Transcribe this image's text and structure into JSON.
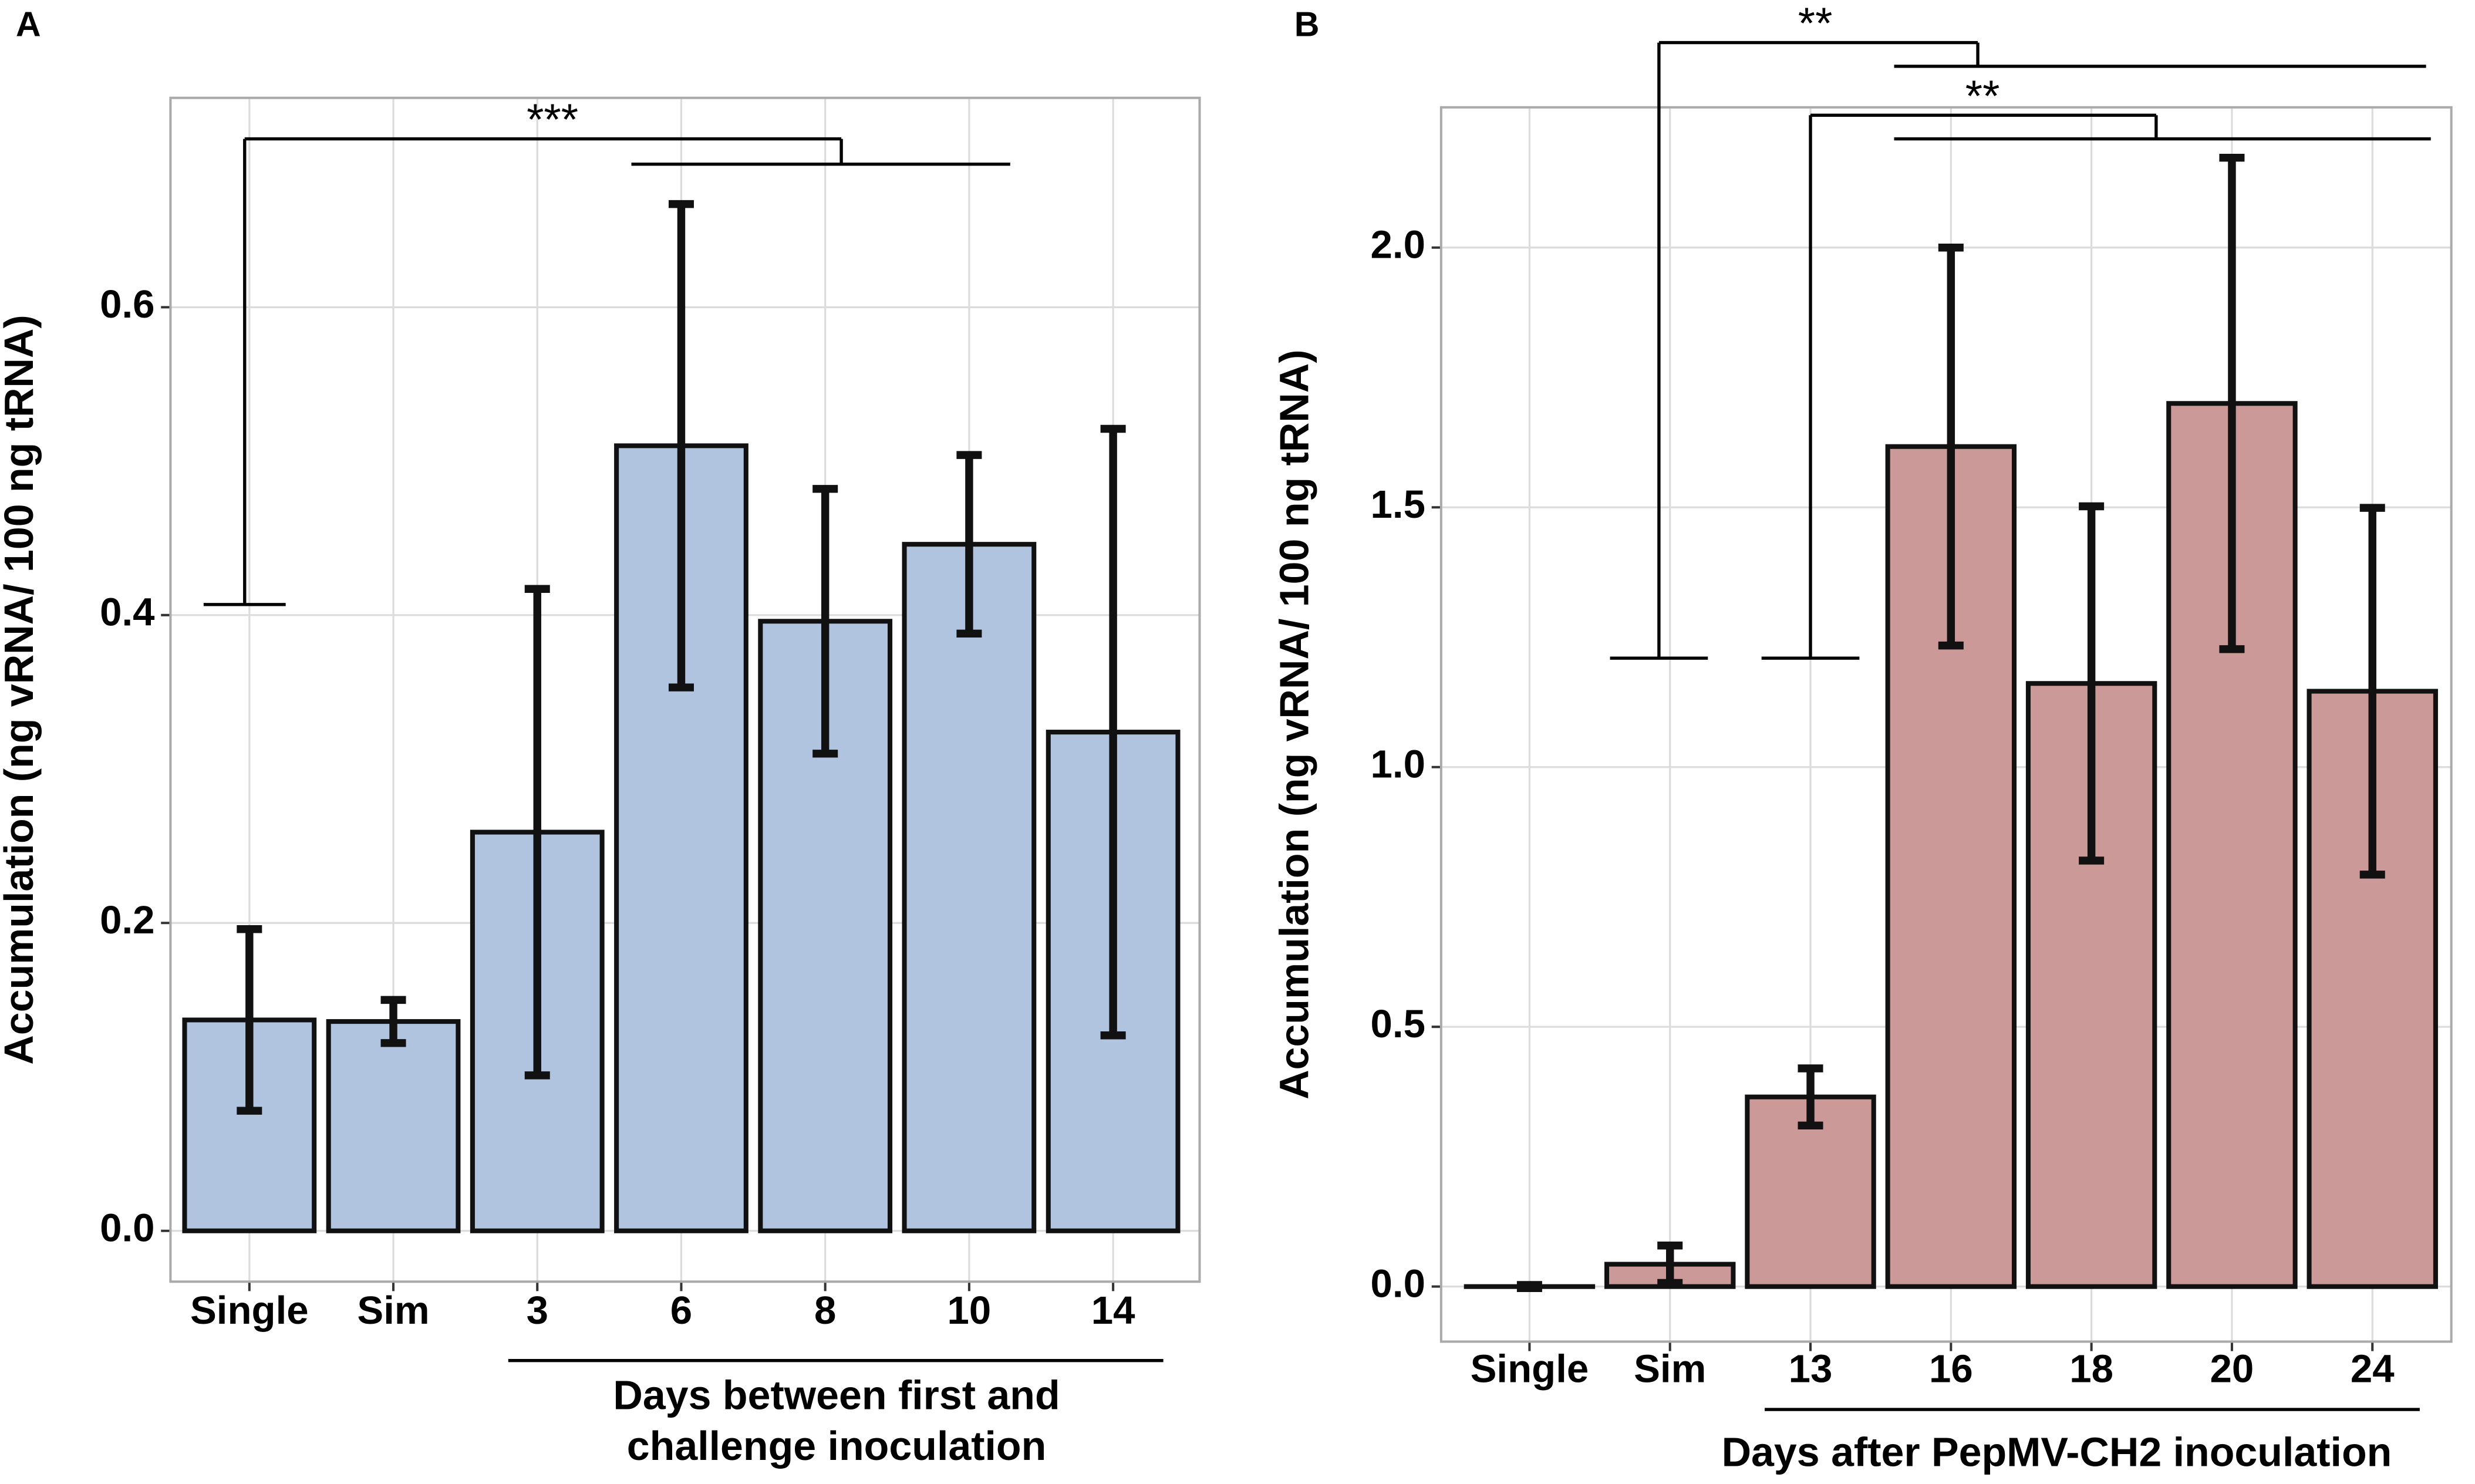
{
  "chart_data": [
    {
      "type": "bar",
      "title": "A",
      "categories": [
        "Single",
        "Sim",
        "3",
        "6",
        "8",
        "10",
        "14"
      ],
      "values": [
        0.137,
        0.136,
        0.259,
        0.51,
        0.396,
        0.446,
        0.324
      ],
      "errors": [
        0.059,
        0.014,
        0.158,
        0.157,
        0.086,
        0.058,
        0.197
      ],
      "color": "#b0c4e0",
      "ylabel": "Accumulation (ng vRNA/ 100 ng tRNA)",
      "xlabel": [
        "Days between first and",
        "challenge inoculation"
      ],
      "annotations": [
        "***"
      ],
      "ylim": [
        -0.033,
        0.736
      ],
      "yticks": [
        {
          "value": 0,
          "label": "0.0"
        },
        0.2,
        0.4,
        0.6
      ],
      "grid": true
    },
    {
      "type": "bar",
      "title": "B",
      "categories": [
        "Single",
        "Sim",
        "13",
        "16",
        "18",
        "20",
        "24"
      ],
      "values": [
        0.0,
        0.043,
        0.365,
        1.617,
        1.161,
        1.7,
        1.146
      ],
      "errors": [
        0.003,
        0.036,
        0.055,
        0.383,
        0.341,
        0.473,
        0.353
      ],
      "color": "#cc9999",
      "ylabel": "Accumulation (ng vRNA/ 100 ng tRNA)",
      "xlabel": [
        "Days after PepMV-CH2 inoculation"
      ],
      "annotations": [
        "**",
        "**"
      ],
      "ylim": [
        -0.106,
        2.27
      ],
      "yticks": [
        {
          "value": 0,
          "label": "0.0"
        },
        0.5,
        {
          "value": 1,
          "label": "1.0"
        },
        1.5,
        {
          "value": 2,
          "label": "2.0"
        }
      ],
      "grid": true
    }
  ]
}
